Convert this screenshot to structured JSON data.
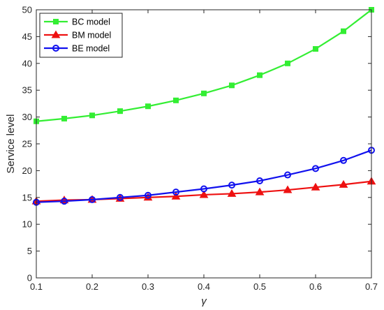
{
  "chart_data": {
    "type": "line",
    "xlabel": "γ",
    "ylabel": "Service level",
    "xlim": [
      0.1,
      0.7
    ],
    "ylim": [
      0,
      50
    ],
    "xticks": [
      "0.1",
      "0.2",
      "0.3",
      "0.4",
      "0.5",
      "0.6",
      "0.7"
    ],
    "yticks": [
      "0",
      "5",
      "10",
      "15",
      "20",
      "25",
      "30",
      "35",
      "40",
      "45",
      "50"
    ],
    "grid": false,
    "legend_position": "top-left",
    "x": [
      0.1,
      0.15,
      0.2,
      0.25,
      0.3,
      0.35,
      0.4,
      0.45,
      0.5,
      0.55,
      0.6,
      0.65,
      0.7
    ],
    "series": [
      {
        "name": "BC model",
        "color": "#33ee33",
        "marker": "square",
        "values": [
          29.2,
          29.7,
          30.3,
          31.1,
          32.0,
          33.1,
          34.4,
          35.9,
          37.8,
          40.0,
          42.7,
          46.0,
          50.0
        ]
      },
      {
        "name": "BM model",
        "color": "#ee1111",
        "marker": "triangle",
        "values": [
          14.3,
          14.5,
          14.6,
          14.8,
          15.0,
          15.2,
          15.5,
          15.7,
          16.0,
          16.4,
          16.9,
          17.4,
          18.0
        ]
      },
      {
        "name": "BE model",
        "color": "#1111ee",
        "marker": "circle",
        "values": [
          14.1,
          14.3,
          14.6,
          15.0,
          15.4,
          16.0,
          16.6,
          17.3,
          18.1,
          19.2,
          20.4,
          21.9,
          23.8
        ]
      }
    ]
  }
}
